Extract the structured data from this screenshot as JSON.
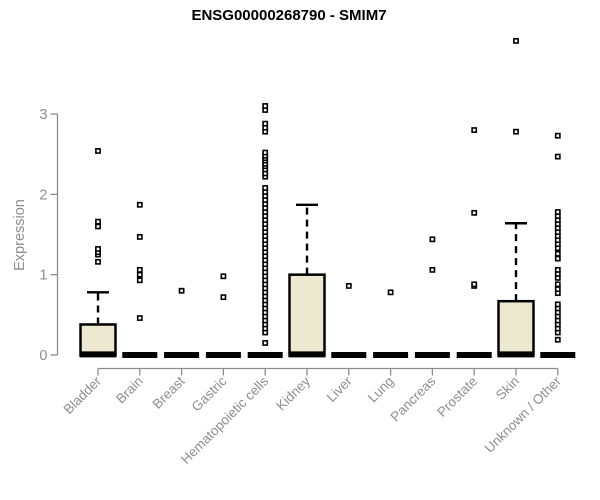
{
  "chart_data": {
    "type": "boxplot",
    "title": "ENSG00000268790 - SMIM7",
    "ylabel": "Expression",
    "xlabel": "",
    "y_ticks": [
      0,
      1,
      2,
      3
    ],
    "ylim": [
      0,
      3
    ],
    "grid": false,
    "legend_position": "none",
    "categories": [
      "Bladder",
      "Brain",
      "Breast",
      "Gastric",
      "Hematopoietic cells",
      "Kidney",
      "Liver",
      "Lung",
      "Pancreas",
      "Prostate",
      "Skin",
      "Unknown / Other"
    ],
    "series": [
      {
        "category": "Bladder",
        "q1": 0,
        "median": 0.02,
        "q3": 0.38,
        "whisker_low": 0,
        "whisker_high": 0.78,
        "outliers": [
          1.16,
          1.25,
          1.28,
          1.32,
          1.6,
          1.66,
          2.54
        ]
      },
      {
        "category": "Brain",
        "q1": 0,
        "median": 0,
        "q3": 0,
        "whisker_low": 0,
        "whisker_high": 0,
        "outliers": [
          0.46,
          0.93,
          1.0,
          1.06,
          1.47,
          1.87
        ]
      },
      {
        "category": "Breast",
        "q1": 0,
        "median": 0,
        "q3": 0,
        "whisker_low": 0,
        "whisker_high": 0,
        "outliers": [
          0.8
        ]
      },
      {
        "category": "Gastric",
        "q1": 0,
        "median": 0,
        "q3": 0,
        "whisker_low": 0,
        "whisker_high": 0,
        "outliers": [
          0.72,
          0.98
        ]
      },
      {
        "category": "Hematopoietic cells",
        "q1": 0,
        "median": 0,
        "q3": 0,
        "whisker_low": 0,
        "whisker_high": 0,
        "outliers": [
          0.15,
          0.28,
          0.33,
          0.38,
          0.43,
          0.48,
          0.53,
          0.58,
          0.63,
          0.68,
          0.73,
          0.78,
          0.83,
          0.88,
          0.93,
          0.98,
          1.03,
          1.08,
          1.13,
          1.18,
          1.23,
          1.28,
          1.33,
          1.38,
          1.43,
          1.48,
          1.53,
          1.58,
          1.63,
          1.68,
          1.73,
          1.78,
          1.83,
          1.88,
          1.93,
          1.98,
          2.03,
          2.08,
          2.22,
          2.26,
          2.31,
          2.35,
          2.38,
          2.42,
          2.45,
          2.48,
          2.52,
          2.78,
          2.83,
          2.88,
          3.05,
          3.1
        ]
      },
      {
        "category": "Kidney",
        "q1": 0,
        "median": 0.02,
        "q3": 1.0,
        "whisker_low": 0,
        "whisker_high": 1.87,
        "outliers": []
      },
      {
        "category": "Liver",
        "q1": 0,
        "median": 0,
        "q3": 0,
        "whisker_low": 0,
        "whisker_high": 0,
        "outliers": [
          0.86
        ]
      },
      {
        "category": "Lung",
        "q1": 0,
        "median": 0,
        "q3": 0,
        "whisker_low": 0,
        "whisker_high": 0,
        "outliers": [
          0.78
        ]
      },
      {
        "category": "Pancreas",
        "q1": 0,
        "median": 0,
        "q3": 0,
        "whisker_low": 0,
        "whisker_high": 0,
        "outliers": [
          1.06,
          1.44
        ]
      },
      {
        "category": "Prostate",
        "q1": 0,
        "median": 0,
        "q3": 0,
        "whisker_low": 0,
        "whisker_high": 0,
        "outliers": [
          0.86,
          0.88,
          1.77,
          2.8
        ]
      },
      {
        "category": "Skin",
        "q1": 0,
        "median": 0.02,
        "q3": 0.67,
        "whisker_low": 0,
        "whisker_high": 1.64,
        "outliers": [
          2.78,
          3.91
        ]
      },
      {
        "category": "Unknown / Other",
        "q1": 0,
        "median": 0,
        "q3": 0,
        "whisker_low": 0,
        "whisker_high": 0,
        "outliers": [
          0.19,
          0.28,
          0.33,
          0.38,
          0.43,
          0.48,
          0.53,
          0.58,
          0.63,
          0.77,
          0.82,
          0.88,
          0.96,
          1.01,
          1.06,
          1.2,
          1.26,
          1.33,
          1.38,
          1.43,
          1.48,
          1.53,
          1.58,
          1.63,
          1.68,
          1.73,
          1.78,
          2.47,
          2.73
        ]
      }
    ],
    "colors": {
      "box_fill": "#EDE8D0",
      "box_border": "#000000",
      "median": "#000000",
      "outlier": "#000000",
      "axis": "#8c8c8c",
      "tick_label": "#8e8e8e",
      "title": "#000000",
      "background": "#ffffff"
    }
  }
}
